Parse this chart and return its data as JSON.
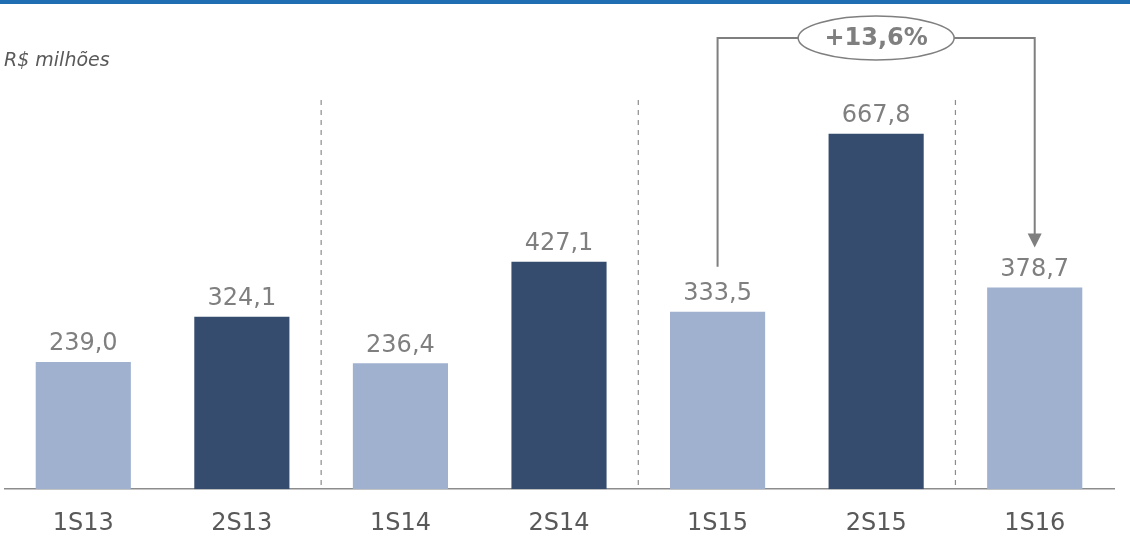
{
  "chart_data": {
    "type": "bar",
    "subtitle": "R$ milhões",
    "categories": [
      "1S13",
      "2S13",
      "1S14",
      "2S14",
      "1S15",
      "2S15",
      "1S16"
    ],
    "values": [
      239.0,
      324.1,
      236.4,
      427.1,
      333.5,
      667.8,
      378.7
    ],
    "colors": [
      "#9fb1cf",
      "#364c6e",
      "#9fb1cf",
      "#364c6e",
      "#9fb1cf",
      "#364c6e",
      "#9fb1cf"
    ],
    "data_labels": true,
    "value_labels": [
      "239,0",
      "324,1",
      "236,4",
      "427,1",
      "333,5",
      "667,8",
      "378,7"
    ],
    "annotations": [
      "+13,6%"
    ],
    "legend": false
  }
}
